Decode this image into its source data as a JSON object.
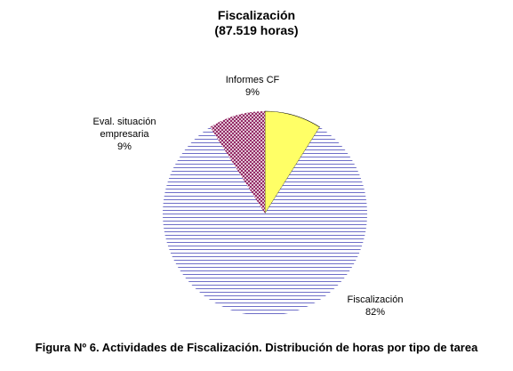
{
  "colors": {
    "fiscalizacion_stripe": "#6f6fc8",
    "eval_pattern": "#8b1a5a",
    "informes_fill": "#ffff66",
    "outline": "#000000"
  },
  "caption": "Figura Nº 6. Actividades de Fiscalización. Distribución de horas por tipo de tarea",
  "chart_data": {
    "type": "pie",
    "title": "Fiscalización",
    "subtitle": "(87.519 horas)",
    "categories": [
      "Informes CF",
      "Fiscalización",
      "Eval. situación empresaria"
    ],
    "values": [
      9,
      82,
      9
    ],
    "value_labels": [
      "9%",
      "82%",
      "9%"
    ],
    "label_lines": [
      [
        "Informes CF"
      ],
      [
        "Fiscalización"
      ],
      [
        "Eval. situación",
        "empresaria"
      ]
    ],
    "patterns": [
      "solid-yellow",
      "horizontal-lines",
      "crosshatch"
    ],
    "start_angle_deg": 0,
    "direction": "clockwise"
  }
}
